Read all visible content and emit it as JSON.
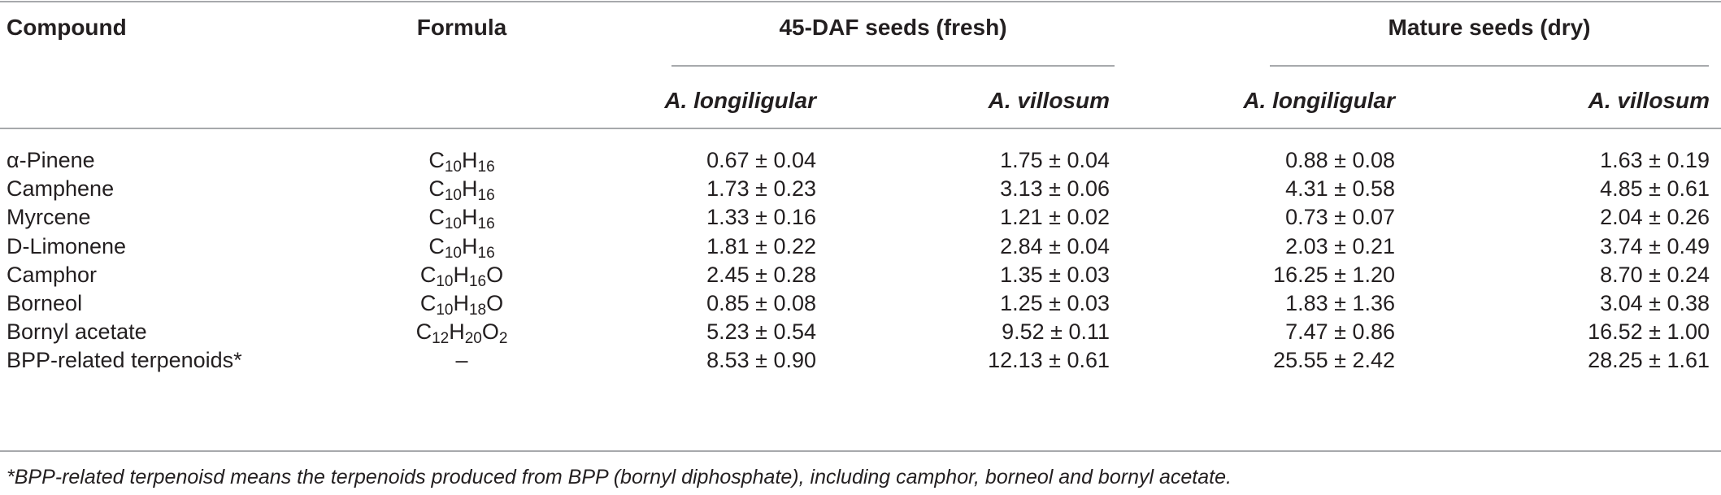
{
  "headers": {
    "compound": "Compound",
    "formula": "Formula",
    "group1": "45-DAF seeds (fresh)",
    "group2": "Mature seeds (dry)",
    "species1": "A. longiligular",
    "species2": "A. villosum"
  },
  "rows": [
    {
      "name": "α-Pinene",
      "formula": [
        [
          "C",
          ""
        ],
        [
          "10",
          "sub"
        ],
        [
          "H",
          ""
        ],
        [
          "16",
          "sub"
        ]
      ],
      "v": [
        "0.67 ± 0.04",
        "1.75 ± 0.04",
        "0.88 ± 0.08",
        "1.63 ± 0.19"
      ]
    },
    {
      "name": "Camphene",
      "formula": [
        [
          "C",
          ""
        ],
        [
          "10",
          "sub"
        ],
        [
          "H",
          ""
        ],
        [
          "16",
          "sub"
        ]
      ],
      "v": [
        "1.73 ± 0.23",
        "3.13 ± 0.06",
        "4.31 ± 0.58",
        "4.85 ± 0.61"
      ]
    },
    {
      "name": "Myrcene",
      "formula": [
        [
          "C",
          ""
        ],
        [
          "10",
          "sub"
        ],
        [
          "H",
          ""
        ],
        [
          "16",
          "sub"
        ]
      ],
      "v": [
        "1.33 ± 0.16",
        "1.21 ± 0.02",
        "0.73 ± 0.07",
        "2.04 ± 0.26"
      ]
    },
    {
      "name": "D-Limonene",
      "formula": [
        [
          "C",
          ""
        ],
        [
          "10",
          "sub"
        ],
        [
          "H",
          ""
        ],
        [
          "16",
          "sub"
        ]
      ],
      "v": [
        "1.81 ± 0.22",
        "2.84 ± 0.04",
        "2.03 ± 0.21",
        "3.74 ± 0.49"
      ]
    },
    {
      "name": "Camphor",
      "formula": [
        [
          "C",
          ""
        ],
        [
          "10",
          "sub"
        ],
        [
          "H",
          ""
        ],
        [
          "16",
          "sub"
        ],
        [
          "O",
          ""
        ]
      ],
      "v": [
        "2.45 ± 0.28",
        "1.35 ± 0.03",
        "16.25 ± 1.20",
        "8.70 ± 0.24"
      ]
    },
    {
      "name": "Borneol",
      "formula": [
        [
          "C",
          ""
        ],
        [
          "10",
          "sub"
        ],
        [
          "H",
          ""
        ],
        [
          "18",
          "sub"
        ],
        [
          "O",
          ""
        ]
      ],
      "v": [
        "0.85 ± 0.08",
        "1.25 ± 0.03",
        "1.83 ± 1.36",
        "3.04 ± 0.38"
      ]
    },
    {
      "name": "Bornyl acetate",
      "formula": [
        [
          "C",
          ""
        ],
        [
          "12",
          "sub"
        ],
        [
          "H",
          ""
        ],
        [
          "20",
          "sub"
        ],
        [
          "O",
          ""
        ],
        [
          "2",
          "sub"
        ]
      ],
      "v": [
        "5.23 ± 0.54",
        "9.52 ± 0.11",
        "7.47 ± 0.86",
        "16.52 ± 1.00"
      ]
    },
    {
      "name": "BPP-related terpenoids*",
      "formula": [
        [
          "–",
          ""
        ]
      ],
      "v": [
        "8.53 ± 0.90",
        "12.13 ± 0.61",
        "25.55 ± 2.42",
        "28.25 ± 1.61"
      ]
    }
  ],
  "footnote": "*BPP-related terpenoisd means the terpenoids produced from BPP (bornyl diphosphate), including camphor, borneol and bornyl acetate."
}
